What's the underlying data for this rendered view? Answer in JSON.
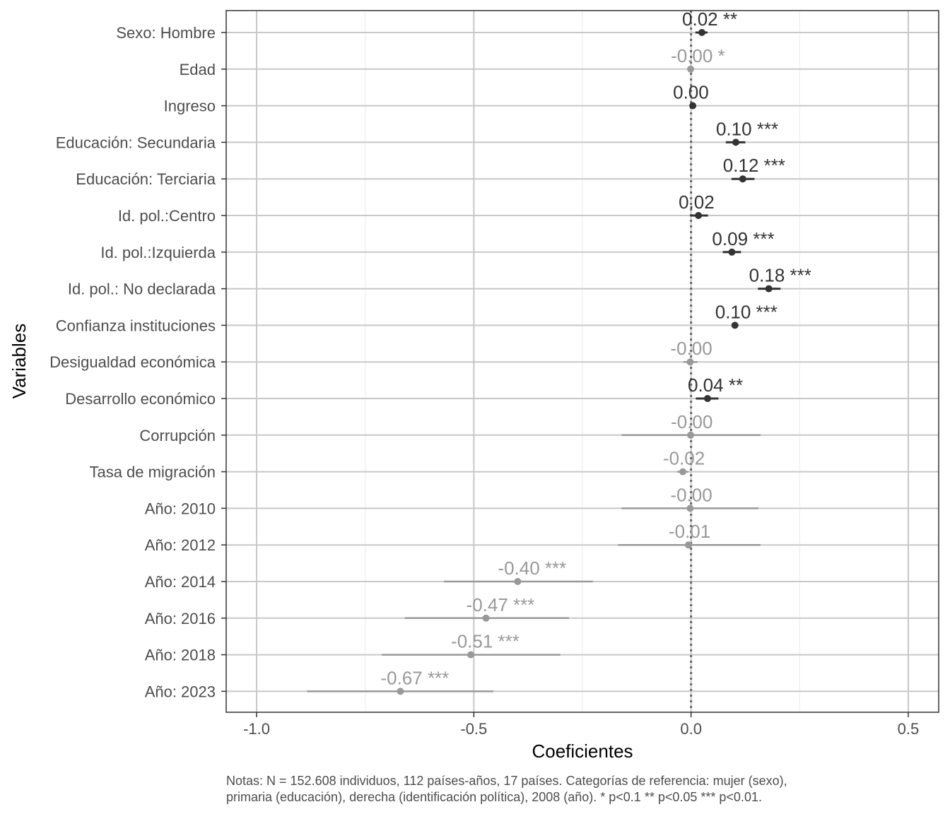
{
  "chart_data": {
    "type": "coefficient-plot",
    "xlabel": "Coeficientes",
    "ylabel": "Variables",
    "xlim": [
      -1.07,
      0.57
    ],
    "xticks": [
      {
        "value": -1.0,
        "label": "-1.0"
      },
      {
        "value": -0.5,
        "label": "-0.5"
      },
      {
        "value": 0.0,
        "label": "0.0"
      },
      {
        "value": 0.5,
        "label": "0.5"
      }
    ],
    "reference_line": 0,
    "grid": true,
    "colors": {
      "significant": "#333333",
      "not_significant": "#999999",
      "zero_line": "#666666"
    },
    "series": [
      {
        "variable": "Sexo: Hombre",
        "estimate": 0.025,
        "ci_low": 0.01,
        "ci_high": 0.038,
        "label": "0.02 **",
        "significant": true
      },
      {
        "variable": "Edad",
        "estimate": -0.001,
        "ci_low": -0.002,
        "ci_high": 0.0,
        "label": "-0.00 *",
        "significant": false
      },
      {
        "variable": "Ingreso",
        "estimate": 0.004,
        "ci_low": 0.002,
        "ci_high": 0.006,
        "label": "0.00",
        "significant": true
      },
      {
        "variable": "Educación: Secundaria",
        "estimate": 0.103,
        "ci_low": 0.08,
        "ci_high": 0.125,
        "label": "0.10 ***",
        "significant": true
      },
      {
        "variable": "Educación: Terciaria",
        "estimate": 0.119,
        "ci_low": 0.093,
        "ci_high": 0.146,
        "label": "0.12 ***",
        "significant": true
      },
      {
        "variable": "Id. pol.:Centro",
        "estimate": 0.017,
        "ci_low": -0.002,
        "ci_high": 0.039,
        "label": "0.02",
        "significant": true
      },
      {
        "variable": "Id. pol.:Izquierda",
        "estimate": 0.094,
        "ci_low": 0.073,
        "ci_high": 0.115,
        "label": "0.09 ***",
        "significant": true
      },
      {
        "variable": "Id. pol.: No declarada",
        "estimate": 0.179,
        "ci_low": 0.154,
        "ci_high": 0.206,
        "label": "0.18 ***",
        "significant": true
      },
      {
        "variable": "Confianza instituciones",
        "estimate": 0.101,
        "ci_low": 0.095,
        "ci_high": 0.107,
        "label": "0.10 ***",
        "significant": true
      },
      {
        "variable": "Desigualdad económica",
        "estimate": -0.002,
        "ci_low": -0.018,
        "ci_high": 0.015,
        "label": "-0.00",
        "significant": false
      },
      {
        "variable": "Desarrollo económico",
        "estimate": 0.038,
        "ci_low": 0.011,
        "ci_high": 0.063,
        "label": "0.04 **",
        "significant": true
      },
      {
        "variable": "Corrupción",
        "estimate": -0.001,
        "ci_low": -0.16,
        "ci_high": 0.16,
        "label": "-0.00",
        "significant": false
      },
      {
        "variable": "Tasa de migración",
        "estimate": -0.019,
        "ci_low": -0.032,
        "ci_high": -0.006,
        "label": "-0.02",
        "significant": false
      },
      {
        "variable": "Año: 2010",
        "estimate": -0.002,
        "ci_low": -0.16,
        "ci_high": 0.155,
        "label": "-0.00",
        "significant": false
      },
      {
        "variable": "Año: 2012",
        "estimate": -0.006,
        "ci_low": -0.168,
        "ci_high": 0.16,
        "label": "-0.01",
        "significant": false
      },
      {
        "variable": "Año: 2014",
        "estimate": -0.399,
        "ci_low": -0.569,
        "ci_high": -0.226,
        "label": "-0.40 ***",
        "significant": false
      },
      {
        "variable": "Año: 2016",
        "estimate": -0.472,
        "ci_low": -0.659,
        "ci_high": -0.281,
        "label": "-0.47 ***",
        "significant": false
      },
      {
        "variable": "Año: 2018",
        "estimate": -0.507,
        "ci_low": -0.712,
        "ci_high": -0.301,
        "label": "-0.51 ***",
        "significant": false
      },
      {
        "variable": "Año: 2023",
        "estimate": -0.669,
        "ci_low": -0.884,
        "ci_high": -0.455,
        "label": "-0.67 ***",
        "significant": false
      }
    ]
  },
  "notes": {
    "line1": "Notas: N = 152.608 individuos, 112 países-años, 17 países. Categorías de referencia: mujer (sexo),",
    "line2": "primaria (educación), derecha (identificación política), 2008 (año). * p<0.1 ** p<0.05 *** p<0.01."
  }
}
